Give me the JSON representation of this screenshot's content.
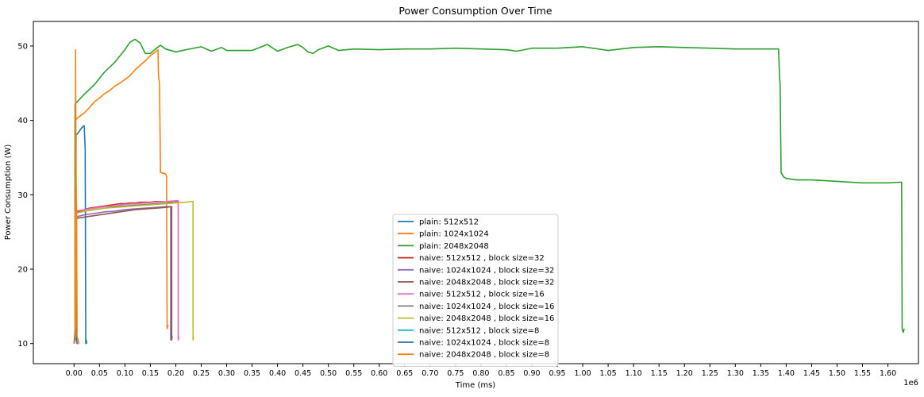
{
  "chart_data": {
    "type": "line",
    "title": "Power Consumption Over Time",
    "xlabel": "Time (ms)",
    "ylabel": "Power Consumption (W)",
    "x_offset_text": "1e6",
    "xlim": [
      -0.08,
      1.66
    ],
    "ylim": [
      7.3,
      53.3
    ],
    "x_ticks": [
      0.0,
      0.05,
      0.1,
      0.15,
      0.2,
      0.25,
      0.3,
      0.35,
      0.4,
      0.45,
      0.5,
      0.55,
      0.6,
      0.65,
      0.7,
      0.75,
      0.8,
      0.85,
      0.9,
      0.95,
      1.0,
      1.05,
      1.1,
      1.15,
      1.2,
      1.25,
      1.3,
      1.35,
      1.4,
      1.45,
      1.5,
      1.55,
      1.6
    ],
    "x_tick_labels": [
      "0.00",
      "0.05",
      "0.10",
      "0.15",
      "0.20",
      "0.25",
      "0.30",
      "0.35",
      "0.40",
      "0.45",
      "0.50",
      "0.55",
      "0.60",
      "0.65",
      "0.70",
      "0.75",
      "0.80",
      "0.85",
      "0.90",
      "0.95",
      "1.00",
      "1.05",
      "1.10",
      "1.15",
      "1.20",
      "1.25",
      "1.30",
      "1.35",
      "1.40",
      "1.45",
      "1.50",
      "1.55",
      "1.60"
    ],
    "y_ticks": [
      10,
      20,
      30,
      40,
      50
    ],
    "y_tick_labels": [
      "10",
      "20",
      "30",
      "40",
      "50"
    ],
    "grid": false,
    "legend_position": "lower-center",
    "series": [
      {
        "name": "plain: 512x512",
        "color": "#1f77b4",
        "x": [
          0.0,
          0.002,
          0.004,
          0.004,
          0.01,
          0.015,
          0.02,
          0.022,
          0.022,
          0.023,
          0.023,
          0.024,
          0.025
        ],
        "y": [
          10.0,
          10.5,
          11.0,
          38.0,
          38.5,
          39.0,
          39.3,
          36.0,
          35.0,
          12.0,
          10.0,
          10.5,
          10.0
        ]
      },
      {
        "name": "plain: 1024x1024",
        "color": "#ff7f0e",
        "x": [
          0.0,
          0.002,
          0.002,
          0.01,
          0.02,
          0.03,
          0.04,
          0.05,
          0.06,
          0.07,
          0.08,
          0.09,
          0.1,
          0.11,
          0.12,
          0.13,
          0.14,
          0.15,
          0.16,
          0.165,
          0.166,
          0.168,
          0.17,
          0.18,
          0.182,
          0.183,
          0.185
        ],
        "y": [
          10.0,
          10.5,
          40.0,
          40.5,
          41.0,
          41.7,
          42.5,
          43.0,
          43.6,
          44.0,
          44.6,
          45.0,
          45.5,
          46.0,
          46.8,
          47.4,
          48.0,
          48.7,
          49.2,
          49.5,
          46.0,
          45.0,
          33.0,
          32.8,
          32.5,
          12.0,
          12.5
        ]
      },
      {
        "name": "plain: 2048x2048",
        "color": "#2ca02c",
        "x": [
          0.0,
          0.002,
          0.002,
          0.02,
          0.04,
          0.06,
          0.08,
          0.1,
          0.11,
          0.12,
          0.13,
          0.14,
          0.15,
          0.16,
          0.17,
          0.18,
          0.2,
          0.22,
          0.25,
          0.27,
          0.29,
          0.3,
          0.32,
          0.35,
          0.38,
          0.4,
          0.42,
          0.44,
          0.45,
          0.46,
          0.47,
          0.48,
          0.5,
          0.52,
          0.55,
          0.6,
          0.65,
          0.7,
          0.75,
          0.8,
          0.85,
          0.87,
          0.9,
          0.95,
          1.0,
          1.05,
          1.1,
          1.15,
          1.2,
          1.25,
          1.3,
          1.35,
          1.385,
          1.387,
          1.388,
          1.39,
          1.395,
          1.4,
          1.42,
          1.45,
          1.5,
          1.55,
          1.6,
          1.627,
          1.628,
          1.63,
          1.632
        ],
        "y": [
          10.0,
          11.0,
          42.2,
          43.5,
          44.8,
          46.5,
          47.8,
          49.5,
          50.5,
          50.9,
          50.4,
          49.0,
          49.0,
          49.6,
          50.1,
          49.6,
          49.2,
          49.5,
          49.9,
          49.3,
          49.8,
          49.4,
          49.4,
          49.4,
          50.2,
          49.3,
          49.8,
          50.2,
          49.8,
          49.2,
          49.0,
          49.5,
          50.0,
          49.4,
          49.6,
          49.5,
          49.6,
          49.6,
          49.7,
          49.6,
          49.5,
          49.3,
          49.7,
          49.7,
          49.9,
          49.4,
          49.8,
          49.9,
          49.8,
          49.7,
          49.6,
          49.6,
          49.6,
          45.8,
          45.0,
          33.0,
          32.4,
          32.2,
          32.0,
          32.0,
          31.8,
          31.6,
          31.6,
          31.7,
          12.0,
          11.5,
          12.0
        ]
      },
      {
        "name": "naive: 512x512 , block size=32",
        "color": "#d62728",
        "x": [
          0.0,
          0.002,
          0.002,
          0.01,
          0.02,
          0.03,
          0.04,
          0.05,
          0.06,
          0.07,
          0.08,
          0.09,
          0.1,
          0.11,
          0.12,
          0.13,
          0.14,
          0.15,
          0.16,
          0.17,
          0.18,
          0.19,
          0.2,
          0.205,
          0.205,
          0.206
        ],
        "y": [
          10.0,
          10.5,
          27.5,
          27.8,
          28.0,
          28.2,
          28.3,
          28.4,
          28.5,
          28.6,
          28.7,
          28.8,
          28.8,
          28.9,
          28.9,
          29.0,
          29.0,
          29.0,
          29.1,
          29.1,
          29.1,
          29.1,
          29.1,
          29.1,
          10.5,
          11.0
        ]
      },
      {
        "name": "naive: 1024x1024 , block size=32",
        "color": "#9467bd",
        "x": [
          0.0,
          0.002,
          0.002,
          0.02,
          0.04,
          0.06,
          0.08,
          0.1,
          0.12,
          0.14,
          0.16,
          0.18,
          0.19,
          0.19,
          0.191
        ],
        "y": [
          10.0,
          11.0,
          27.0,
          27.3,
          27.5,
          27.7,
          27.8,
          28.0,
          28.1,
          28.2,
          28.3,
          28.4,
          28.4,
          10.5,
          11.0
        ]
      },
      {
        "name": "naive: 2048x2048 , block size=32",
        "color": "#8c564b",
        "x": [
          0.0,
          0.002,
          0.002,
          0.02,
          0.04,
          0.06,
          0.08,
          0.1,
          0.12,
          0.14,
          0.16,
          0.18,
          0.19,
          0.192,
          0.192,
          0.193
        ],
        "y": [
          10.0,
          10.5,
          26.8,
          27.0,
          27.2,
          27.4,
          27.6,
          27.8,
          28.0,
          28.1,
          28.2,
          28.3,
          28.4,
          28.4,
          10.5,
          11.0
        ]
      },
      {
        "name": "naive: 512x512 , block size=16",
        "color": "#e377c2",
        "x": [
          0.0,
          0.002,
          0.002,
          0.02,
          0.04,
          0.06,
          0.08,
          0.1,
          0.12,
          0.14,
          0.16,
          0.18,
          0.2,
          0.205,
          0.205,
          0.206
        ],
        "y": [
          10.0,
          10.5,
          27.8,
          28.0,
          28.2,
          28.4,
          28.5,
          28.7,
          28.8,
          28.9,
          29.0,
          29.1,
          29.2,
          29.2,
          10.5,
          11.0
        ]
      },
      {
        "name": "naive: 1024x1024 , block size=16",
        "color": "#7f7f7f",
        "x": [
          0.0,
          0.002,
          0.002,
          0.02,
          0.04,
          0.06,
          0.08,
          0.1,
          0.12,
          0.14,
          0.16,
          0.18,
          0.195
        ],
        "y": [
          10.0,
          10.5,
          27.5,
          27.8,
          28.0,
          28.2,
          28.4,
          28.5,
          28.6,
          28.7,
          28.8,
          28.9,
          29.0
        ]
      },
      {
        "name": "naive: 2048x2048 , block size=16",
        "color": "#bcbd22",
        "x": [
          0.0,
          0.002,
          0.002,
          0.02,
          0.04,
          0.06,
          0.08,
          0.1,
          0.12,
          0.14,
          0.16,
          0.18,
          0.2,
          0.22,
          0.232,
          0.234,
          0.234,
          0.235
        ],
        "y": [
          10.0,
          10.5,
          27.5,
          27.8,
          28.0,
          28.2,
          28.3,
          28.4,
          28.5,
          28.6,
          28.7,
          28.8,
          28.9,
          29.0,
          29.1,
          29.1,
          10.5,
          11.0
        ]
      },
      {
        "name": "naive: 512x512 , block size=8",
        "color": "#17becf",
        "x": [
          0.0,
          0.002,
          0.003,
          0.004,
          0.005,
          0.006
        ],
        "y": [
          10.0,
          11.5,
          10.5,
          11.0,
          10.5,
          10.0
        ]
      },
      {
        "name": "naive: 1024x1024 , block size=8",
        "color": "#1f77b4",
        "x": [
          0.0,
          0.001,
          0.002,
          0.003,
          0.004,
          0.005,
          0.006,
          0.007
        ],
        "y": [
          10.0,
          10.5,
          11.5,
          12.0,
          11.0,
          10.5,
          10.0,
          10.0
        ]
      },
      {
        "name": "naive: 2048x2048 , block size=8",
        "color": "#ff7f0e",
        "x": [
          0.0,
          0.002,
          0.003,
          0.003,
          0.004,
          0.005,
          0.006,
          0.008,
          0.009,
          0.01
        ],
        "y": [
          10.0,
          10.5,
          11.0,
          49.5,
          31.0,
          28.0,
          11.0,
          10.5,
          10.0,
          10.0
        ]
      }
    ]
  }
}
